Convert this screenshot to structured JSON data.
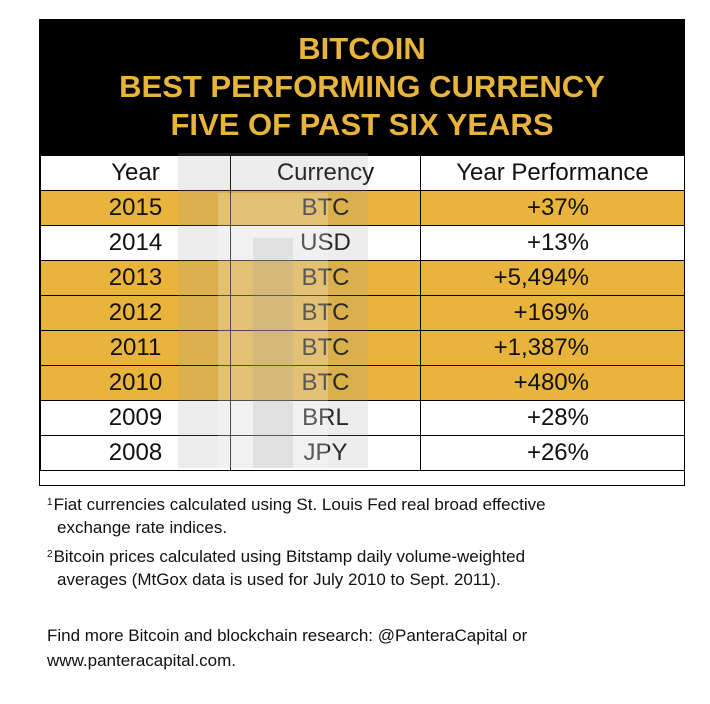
{
  "header": {
    "line1": "BITCOIN",
    "line2": "BEST PERFORMING CURRENCY",
    "line3": "FIVE OF PAST SIX YEARS"
  },
  "colors": {
    "accent": "#e8b43c",
    "header_bg": "#000000"
  },
  "chart_data": {
    "type": "table",
    "title": "BITCOIN BEST PERFORMING CURRENCY FIVE OF PAST SIX YEARS",
    "columns": [
      "Year",
      "Currency",
      "Year Performance"
    ],
    "rows": [
      {
        "year": "2015",
        "currency": "BTC",
        "performance": "+37%",
        "highlight": true
      },
      {
        "year": "2014",
        "currency": "USD",
        "performance": "+13%",
        "highlight": false
      },
      {
        "year": "2013",
        "currency": "BTC",
        "performance": "+5,494%",
        "highlight": true
      },
      {
        "year": "2012",
        "currency": "BTC",
        "performance": "+169%",
        "highlight": true
      },
      {
        "year": "2011",
        "currency": "BTC",
        "performance": "+1,387%",
        "highlight": true
      },
      {
        "year": "2010",
        "currency": "BTC",
        "performance": "+480%",
        "highlight": true
      },
      {
        "year": "2009",
        "currency": "BRL",
        "performance": "+28%",
        "highlight": false
      },
      {
        "year": "2008",
        "currency": "JPY",
        "performance": "+26%",
        "highlight": false
      }
    ]
  },
  "notes": {
    "note1": {
      "marker": "1",
      "line1": "Fiat currencies calculated using St. Louis Fed real broad effective",
      "line2": "exchange rate indices."
    },
    "note2": {
      "marker": "2",
      "line1": "Bitcoin prices calculated using Bitstamp daily volume-weighted",
      "line2": "averages (MtGox data is used for July 2010 to Sept. 2011)."
    }
  },
  "footer": {
    "line1": "Find more Bitcoin and blockchain research: @PanteraCapital or",
    "line2": "www.panteracapital.com."
  }
}
